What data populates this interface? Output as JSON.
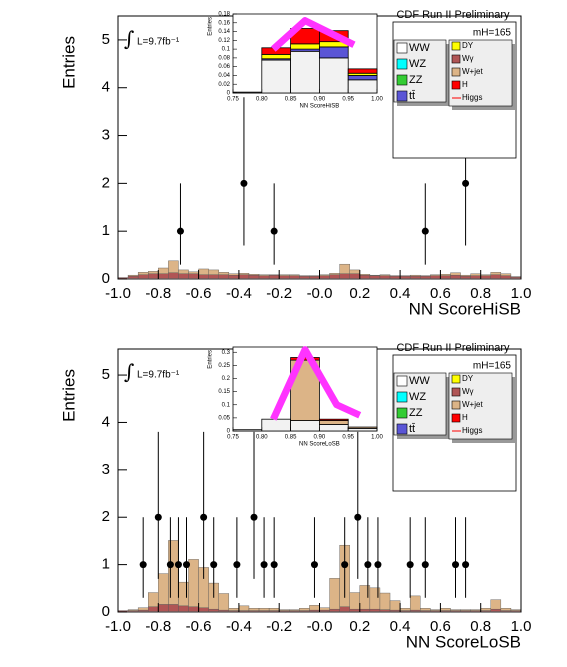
{
  "chart_data": [
    {
      "type": "histogram",
      "title": "CDF Run II Preliminary",
      "mass_label": "mH=165",
      "lumi_symbol": "∫",
      "lumi": "L=9.7fb⁻¹",
      "xlabel": "NN ScoreHiSB",
      "ylabel": "Entries",
      "xlim": [
        -1,
        1
      ],
      "ylim": [
        0,
        5.5
      ],
      "xticks": [
        {
          "value": -1,
          "label": "-1.0"
        },
        -0.8,
        -0.6,
        -0.4,
        -0.2,
        {
          "value": 0,
          "label": "-0.0"
        },
        0.2,
        0.4,
        0.6,
        0.8,
        {
          "value": 1,
          "label": "1.0"
        }
      ],
      "yticks": [
        0,
        1,
        2,
        3,
        4,
        5
      ],
      "bins": [
        -1,
        -0.95,
        -0.9,
        -0.85,
        -0.8,
        -0.75,
        -0.7,
        -0.65,
        -0.6,
        -0.55,
        -0.5,
        -0.45,
        -0.4,
        -0.35,
        -0.3,
        -0.25,
        -0.2,
        -0.15,
        -0.1,
        -0.05,
        0,
        0.05,
        0.1,
        0.15,
        0.2,
        0.25,
        0.3,
        0.35,
        0.4,
        0.45,
        0.5,
        0.55,
        0.6,
        0.65,
        0.7,
        0.75,
        0.8,
        0.85,
        0.9,
        0.95,
        1
      ],
      "series": [
        {
          "name": "WW",
          "color": "#ffffff",
          "values": [
            0.01,
            0.01,
            0.01,
            0.01,
            0.01,
            0.01,
            0.01,
            0.01,
            0.01,
            0.01,
            0.01,
            0.01,
            0.01,
            0.01,
            0.01,
            0.01,
            0.01,
            0.01,
            0.01,
            0.01,
            0.01,
            0.01,
            0.01,
            0.01,
            0.01,
            0.01,
            0.01,
            0.01,
            0.01,
            0.01,
            0.01,
            0.01,
            0.01,
            0.01,
            0.01,
            0.01,
            0.01,
            0.01,
            0.01,
            0.01
          ]
        },
        {
          "name": "WZ",
          "color": "#00ffff"
        },
        {
          "name": "ZZ",
          "color": "#33cc33"
        },
        {
          "name": "tt̄",
          "color": "#5a55d6"
        },
        {
          "name": "DY",
          "color": "#ffff00"
        },
        {
          "name": "Wγ",
          "color": "#b05555",
          "values": [
            0.02,
            0.05,
            0.08,
            0.1,
            0.1,
            0.12,
            0.1,
            0.1,
            0.08,
            0.08,
            0.08,
            0.07,
            0.08,
            0.07,
            0.06,
            0.07,
            0.06,
            0.06,
            0.05,
            0.05,
            0.06,
            0.08,
            0.1,
            0.1,
            0.07,
            0.06,
            0.06,
            0.05,
            0.05,
            0.05,
            0.05,
            0.06,
            0.06,
            0.07,
            0.05,
            0.06,
            0.06,
            0.08,
            0.06,
            0.03
          ]
        },
        {
          "name": "W+jet",
          "color": "#dcb487",
          "values": [
            0,
            0.02,
            0.05,
            0.05,
            0.12,
            0.25,
            0.08,
            0.04,
            0.12,
            0.1,
            0.05,
            0.03,
            0.03,
            0.02,
            0.02,
            0.01,
            0.02,
            0.02,
            0.01,
            0.01,
            0.02,
            0.03,
            0.2,
            0.08,
            0.02,
            0.01,
            0.02,
            0.01,
            0.01,
            0.02,
            0.01,
            0.02,
            0.03,
            0.05,
            0.02,
            0.04,
            0.02,
            0.05,
            0.04,
            0.01
          ]
        },
        {
          "name": "H",
          "color": "#ff0000"
        },
        {
          "name": "Higgs",
          "color": "#ff0000",
          "style": "line"
        }
      ],
      "points": {
        "x": [
          -0.69,
          -0.375,
          -0.225,
          0.525,
          0.725
        ],
        "values": [
          1,
          2,
          1,
          1,
          2
        ],
        "err_low": [
          0.7,
          1.3,
          0.7,
          0.7,
          1.3
        ],
        "err_high": [
          1,
          1.8,
          1,
          1,
          1.8
        ]
      },
      "inset": {
        "xlabel": "NN ScoreHiSB",
        "ylabel": "Entries",
        "xlim": [
          0.75,
          1
        ],
        "ylim": [
          0,
          0.18
        ],
        "xticks": [
          0.75,
          {
            "value": 0.8,
            "label": "0.80"
          },
          0.85,
          {
            "value": 0.9,
            "label": "0.90"
          },
          0.95,
          {
            "value": 1,
            "label": "1.00"
          }
        ],
        "yticks": [
          0,
          0.02,
          0.04,
          0.06,
          0.08,
          0.1,
          0.12,
          0.14,
          0.16,
          0.18
        ],
        "bins": [
          0.75,
          0.8,
          0.85,
          0.9,
          0.95,
          1
        ],
        "series": [
          {
            "color": "#f2f2f2",
            "values": [
              0.002,
              0.075,
              0.095,
              0.08,
              0.03
            ]
          },
          {
            "color": "#5a55d6",
            "values": [
              0,
              0.003,
              0.005,
              0.025,
              0.01
            ]
          },
          {
            "color": "#ffff00",
            "values": [
              0,
              0.01,
              0.012,
              0.012,
              0.005
            ]
          },
          {
            "color": "#ff0000",
            "values": [
              0,
              0.015,
              0.035,
              0.025,
              0.01
            ]
          }
        ],
        "signal": {
          "color": "#ff33ff",
          "x": [
            0.82,
            0.875,
            0.96
          ],
          "values": [
            0.1,
            0.165,
            0.11
          ]
        }
      }
    },
    {
      "type": "histogram",
      "title": "CDF Run II Preliminary",
      "mass_label": "mH=165",
      "lumi_symbol": "∫",
      "lumi": "L=9.7fb⁻¹",
      "xlabel": "NN ScoreLoSB",
      "ylabel": "Entries",
      "xlim": [
        -1,
        1
      ],
      "ylim": [
        0,
        5.55
      ],
      "xticks": [
        {
          "value": -1,
          "label": "-1.0"
        },
        -0.8,
        -0.6,
        -0.4,
        -0.2,
        {
          "value": 0,
          "label": "-0.0"
        },
        0.2,
        0.4,
        0.6,
        0.8,
        {
          "value": 1,
          "label": "1.0"
        }
      ],
      "yticks": [
        0,
        1,
        2,
        3,
        4,
        5
      ],
      "bins": [
        -1,
        -0.95,
        -0.9,
        -0.85,
        -0.8,
        -0.75,
        -0.7,
        -0.65,
        -0.6,
        -0.55,
        -0.5,
        -0.45,
        -0.4,
        -0.35,
        -0.3,
        -0.25,
        -0.2,
        -0.15,
        -0.1,
        -0.05,
        0,
        0.05,
        0.1,
        0.15,
        0.2,
        0.25,
        0.3,
        0.35,
        0.4,
        0.45,
        0.5,
        0.55,
        0.6,
        0.65,
        0.7,
        0.75,
        0.8,
        0.85,
        0.9,
        0.95,
        1
      ],
      "series": [
        {
          "name": "WW",
          "color": "#ffffff",
          "values": [
            0.01,
            0.01,
            0.01,
            0.01,
            0.01,
            0.01,
            0.01,
            0.01,
            0.01,
            0.01,
            0.01,
            0.01,
            0.01,
            0.01,
            0.01,
            0.01,
            0.01,
            0.01,
            0.01,
            0.01,
            0.01,
            0.01,
            0.01,
            0.01,
            0.01,
            0.01,
            0.01,
            0.01,
            0.01,
            0.01,
            0.01,
            0.01,
            0.01,
            0.01,
            0.01,
            0.01,
            0.01,
            0.01,
            0.01,
            0.01
          ]
        },
        {
          "name": "WZ",
          "color": "#00ffff"
        },
        {
          "name": "ZZ",
          "color": "#33cc33"
        },
        {
          "name": "tt̄",
          "color": "#5a55d6"
        },
        {
          "name": "DY",
          "color": "#ffff00"
        },
        {
          "name": "Wγ",
          "color": "#b05555",
          "values": [
            0.02,
            0.02,
            0.03,
            0.1,
            0.15,
            0.15,
            0.12,
            0.1,
            0.08,
            0.05,
            0.03,
            0.02,
            0.02,
            0.02,
            0.02,
            0.02,
            0.02,
            0.02,
            0.02,
            0.03,
            0.03,
            0.05,
            0.1,
            0.05,
            0.05,
            0.05,
            0.04,
            0.03,
            0.02,
            0.03,
            0.02,
            0.02,
            0.02,
            0.02,
            0.02,
            0.02,
            0.02,
            0.05,
            0.02,
            0.02
          ]
        },
        {
          "name": "W+jet",
          "color": "#dcb487",
          "values": [
            0,
            0.02,
            0.05,
            0.3,
            0.65,
            1.35,
            0.5,
            1,
            0.85,
            0.55,
            0.35,
            0.05,
            0.1,
            0.05,
            0.05,
            0.05,
            0.02,
            0.02,
            0.05,
            0.1,
            0.05,
            0.65,
            1.3,
            0.35,
            0.5,
            0.45,
            0.35,
            0.2,
            0.05,
            0.3,
            0.05,
            0.02,
            0.05,
            0.02,
            0.02,
            0.02,
            0.05,
            0.2,
            0.05,
            0.02
          ]
        },
        {
          "name": "H",
          "color": "#ff0000"
        },
        {
          "name": "Higgs",
          "color": "#ff0000",
          "style": "line"
        }
      ],
      "points": {
        "x": [
          -0.875,
          -0.8,
          -0.74,
          -0.7,
          -0.66,
          -0.575,
          -0.525,
          -0.41,
          -0.325,
          -0.275,
          -0.225,
          -0.025,
          0.125,
          0.19,
          0.24,
          0.29,
          0.45,
          0.525,
          0.675,
          0.725
        ],
        "values": [
          1,
          2,
          1,
          1,
          1,
          2,
          1,
          1,
          2,
          1,
          1,
          1,
          1,
          2,
          1,
          1,
          1,
          1,
          1,
          1
        ],
        "err_low": [
          0.7,
          1.3,
          0.7,
          0.7,
          0.7,
          1.3,
          0.7,
          0.7,
          1.3,
          0.7,
          0.7,
          0.7,
          0.7,
          1.3,
          0.7,
          0.7,
          0.7,
          0.7,
          0.7,
          0.7
        ],
        "err_high": [
          1,
          1.8,
          1,
          1,
          1,
          1.8,
          1,
          1,
          1.8,
          1,
          1,
          1,
          1,
          1.8,
          1,
          1,
          1,
          1,
          1,
          1
        ]
      },
      "inset": {
        "xlabel": "NN ScoreLoSB",
        "ylabel": "Entries",
        "xlim": [
          0.75,
          1
        ],
        "ylim": [
          0,
          0.32
        ],
        "xticks": [
          0.75,
          {
            "value": 0.8,
            "label": "0.80"
          },
          0.85,
          {
            "value": 0.9,
            "label": "0.90"
          },
          0.95,
          {
            "value": 1,
            "label": "1.00"
          }
        ],
        "yticks": [
          0,
          0.05,
          0.1,
          0.15,
          0.2,
          0.25,
          0.3
        ],
        "bins": [
          0.75,
          0.8,
          0.85,
          0.9,
          0.95,
          1
        ],
        "series": [
          {
            "color": "#f2f2f2",
            "values": [
              0.005,
              0.045,
              0.04,
              0.025,
              0.01
            ]
          },
          {
            "color": "#dcb487",
            "values": [
              0,
              0,
              0.23,
              0.015,
              0.005
            ]
          },
          {
            "color": "#ff0000",
            "values": [
              0,
              0,
              0.01,
              0.005,
              0
            ]
          }
        ],
        "signal": {
          "color": "#ff33ff",
          "x": [
            0.82,
            0.875,
            0.93,
            0.97
          ],
          "values": [
            0.045,
            0.31,
            0.1,
            0.06
          ]
        }
      }
    }
  ]
}
